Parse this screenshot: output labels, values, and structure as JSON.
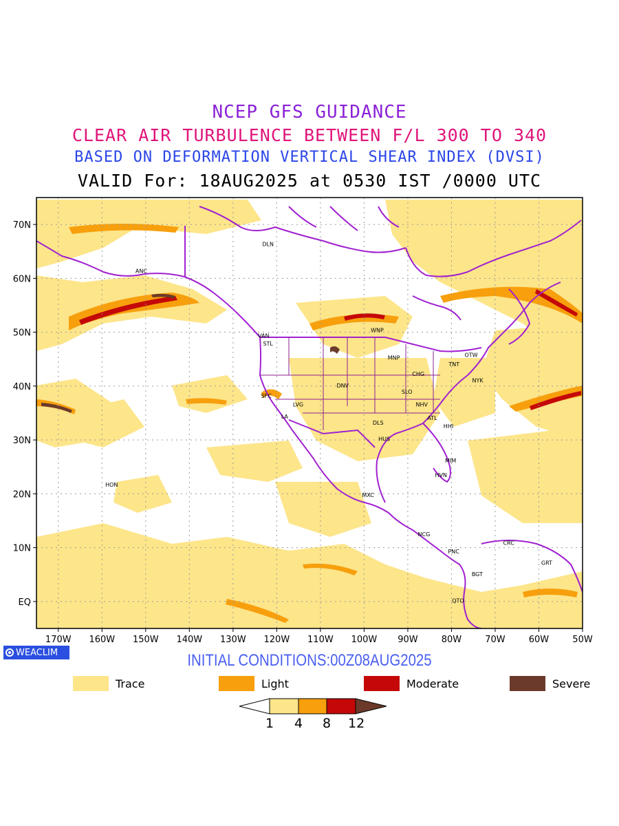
{
  "titles": {
    "line1": "NCEP GFS GUIDANCE",
    "line2": "CLEAR AIR TURBULENCE BETWEEN F/L 300 TO 340",
    "line3": "BASED ON DEFORMATION VERTICAL SHEAR INDEX (DVSI)",
    "line4": "VALID For: 18AUG2025 at 0530 IST /0000 UTC"
  },
  "colors": {
    "line1": "#8b22d6",
    "line2": "#e0147a",
    "line3": "#2a45e8",
    "trace": "#fde58a",
    "light": "#f79f0c",
    "moderate": "#c40808",
    "severe": "#6b3a2a",
    "boundaries": "#a020d0",
    "init_text": "#4a5ff0"
  },
  "map": {
    "lat_labels": [
      "70N",
      "60N",
      "50N",
      "40N",
      "30N",
      "20N",
      "10N",
      "EQ"
    ],
    "lon_labels": [
      "170W",
      "160W",
      "150W",
      "140W",
      "130W",
      "120W",
      "110W",
      "100W",
      "90W",
      "80W",
      "70W",
      "60W",
      "50W"
    ],
    "stations": [
      {
        "code": "DLN",
        "lon": -122.0,
        "lat": 66.0
      },
      {
        "code": "ANC",
        "lon": -151.0,
        "lat": 61.0
      },
      {
        "code": "VAN",
        "lon": -123.0,
        "lat": 49.0
      },
      {
        "code": "STL",
        "lon": -122.0,
        "lat": 47.5
      },
      {
        "code": "WNP",
        "lon": -97.0,
        "lat": 50.0
      },
      {
        "code": "OTW",
        "lon": -75.5,
        "lat": 45.4
      },
      {
        "code": "TNT",
        "lon": -79.4,
        "lat": 43.7
      },
      {
        "code": "MNP",
        "lon": -93.2,
        "lat": 44.9
      },
      {
        "code": "CHG",
        "lon": -87.6,
        "lat": 41.9
      },
      {
        "code": "NYK",
        "lon": -74.0,
        "lat": 40.7
      },
      {
        "code": "DNV",
        "lon": -104.9,
        "lat": 39.7
      },
      {
        "code": "SFC",
        "lon": -122.4,
        "lat": 37.8
      },
      {
        "code": "SLO",
        "lon": -90.2,
        "lat": 38.6
      },
      {
        "code": "LVG",
        "lon": -115.1,
        "lat": 36.2
      },
      {
        "code": "NHV",
        "lon": -86.8,
        "lat": 36.2
      },
      {
        "code": "LA",
        "lon": -118.2,
        "lat": 34.0
      },
      {
        "code": "ATL",
        "lon": -84.4,
        "lat": 33.7
      },
      {
        "code": "DLS",
        "lon": -96.8,
        "lat": 32.8
      },
      {
        "code": "HHI",
        "lon": -80.7,
        "lat": 32.2
      },
      {
        "code": "HUS",
        "lon": -95.4,
        "lat": 29.8
      },
      {
        "code": "MIM",
        "lon": -80.2,
        "lat": 25.8
      },
      {
        "code": "HON",
        "lon": -157.8,
        "lat": 21.3
      },
      {
        "code": "HVN",
        "lon": -82.4,
        "lat": 23.1
      },
      {
        "code": "MXC",
        "lon": -99.1,
        "lat": 19.4
      },
      {
        "code": "NCG",
        "lon": -86.3,
        "lat": 12.1
      },
      {
        "code": "CRC",
        "lon": -66.9,
        "lat": 10.5
      },
      {
        "code": "GRT",
        "lon": -58.2,
        "lat": 6.8
      },
      {
        "code": "PNC",
        "lon": -79.5,
        "lat": 8.9
      },
      {
        "code": "BGT",
        "lon": -74.1,
        "lat": 4.7
      },
      {
        "code": "QTO",
        "lon": -78.5,
        "lat": -0.2
      }
    ]
  },
  "badge": {
    "label": "WEACLIM"
  },
  "initial_conditions": "INITIAL CONDITIONS:00Z08AUG2025",
  "legend": [
    {
      "label": "Trace",
      "color": "#fde58a"
    },
    {
      "label": "Light",
      "color": "#f79f0c"
    },
    {
      "label": "Moderate",
      "color": "#c40808"
    },
    {
      "label": "Severe",
      "color": "#6b3a2a"
    }
  ],
  "colorbar": {
    "ticks": [
      "1",
      "4",
      "8",
      "12"
    ]
  }
}
